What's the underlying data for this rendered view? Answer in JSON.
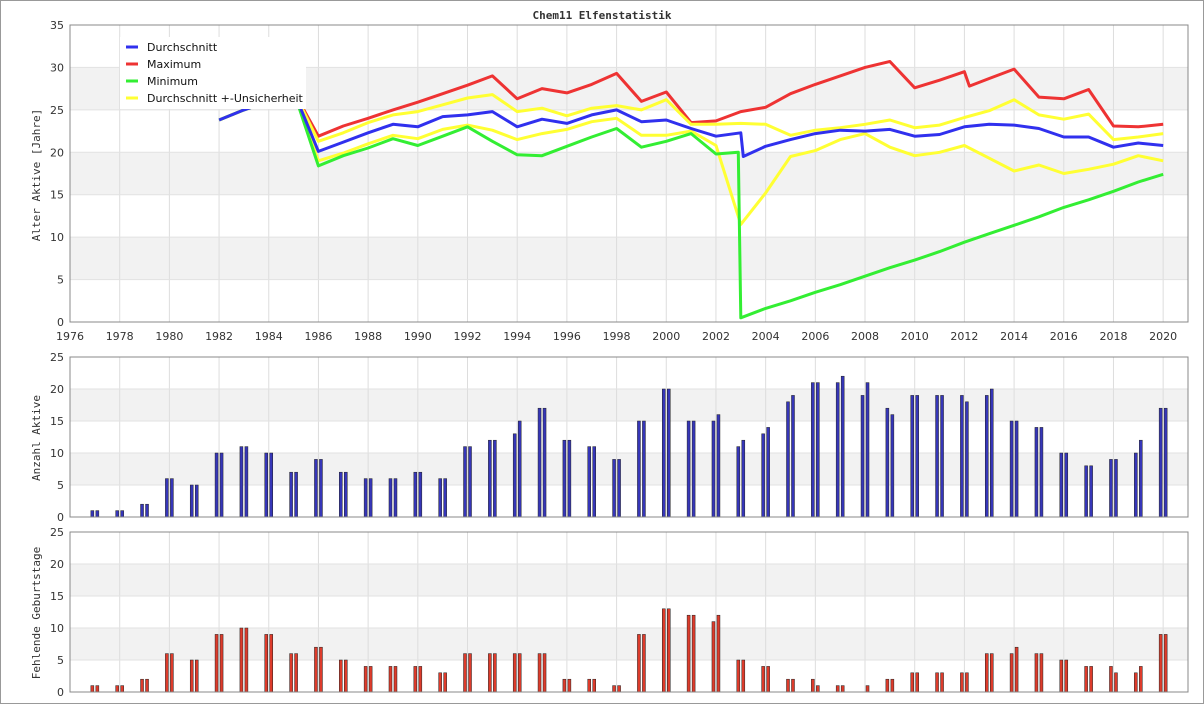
{
  "title": "Chem11 Elfenstatistik",
  "colors": {
    "avg": "#3030ee",
    "max": "#ee3333",
    "min": "#33ee33",
    "unc": "#ffff33",
    "bar_active": "#3636b8",
    "bar_missing": "#dd3b2b"
  },
  "chart_data": [
    {
      "type": "line",
      "ylabel": "Alter Aktive [Jahre]",
      "xlim": [
        1976,
        2021
      ],
      "ylim": [
        0,
        35
      ],
      "xticks": [
        "1976",
        "1978",
        "1980",
        "1982",
        "1984",
        "1986",
        "1988",
        "1990",
        "1992",
        "1994",
        "1996",
        "1998",
        "2000",
        "2002",
        "2004",
        "2006",
        "2008",
        "2010",
        "2012",
        "2014",
        "2016",
        "2018",
        "2020"
      ],
      "yticks": [
        "0",
        "5",
        "10",
        "15",
        "20",
        "25",
        "30",
        "35"
      ],
      "legend_position": "top-left",
      "series": [
        {
          "name": "Maximum",
          "color_key": "max",
          "points": [
            [
              1982,
              23.8
            ],
            [
              1983,
              25.0
            ],
            [
              1984,
              26.0
            ],
            [
              1985,
              27.2
            ],
            [
              1986,
              21.9
            ],
            [
              1987,
              23.1
            ],
            [
              1988,
              24.0
            ],
            [
              1989,
              25.0
            ],
            [
              1990,
              25.9
            ],
            [
              1991,
              26.9
            ],
            [
              1992,
              27.9
            ],
            [
              1993,
              29.0
            ],
            [
              1994,
              26.3
            ],
            [
              1995,
              27.5
            ],
            [
              1996,
              27.0
            ],
            [
              1997,
              28.0
            ],
            [
              1998,
              29.3
            ],
            [
              1999,
              26.0
            ],
            [
              2000,
              27.1
            ],
            [
              2001,
              23.5
            ],
            [
              2002,
              23.7
            ],
            [
              2003,
              24.8
            ],
            [
              2004,
              25.3
            ],
            [
              2005,
              26.9
            ],
            [
              2006,
              28.0
            ],
            [
              2007,
              29.0
            ],
            [
              2008,
              30.0
            ],
            [
              2009,
              30.7
            ],
            [
              2010,
              27.6
            ],
            [
              2011,
              28.5
            ],
            [
              2012,
              29.5
            ],
            [
              2012.2,
              27.8
            ],
            [
              2013,
              28.7
            ],
            [
              2014,
              29.8
            ],
            [
              2015,
              26.5
            ],
            [
              2016,
              26.3
            ],
            [
              2017,
              27.4
            ],
            [
              2018,
              23.1
            ],
            [
              2019,
              23.0
            ],
            [
              2020,
              23.3
            ]
          ]
        },
        {
          "name": "Durchschnitt +-Unsicherheit",
          "color_key": "unc",
          "points": [
            [
              1982,
              23.8
            ],
            [
              1983,
              25.0
            ],
            [
              1984,
              26.0
            ],
            [
              1985,
              27.2
            ],
            [
              1986,
              21.3
            ],
            [
              1987,
              22.3
            ],
            [
              1988,
              23.5
            ],
            [
              1989,
              24.4
            ],
            [
              1990,
              24.8
            ],
            [
              1991,
              25.6
            ],
            [
              1992,
              26.4
            ],
            [
              1993,
              26.8
            ],
            [
              1994,
              24.8
            ],
            [
              1995,
              25.2
            ],
            [
              1996,
              24.3
            ],
            [
              1997,
              25.2
            ],
            [
              1998,
              25.5
            ],
            [
              1999,
              25.0
            ],
            [
              2000,
              26.2
            ],
            [
              2001,
              23.3
            ],
            [
              2002,
              23.3
            ],
            [
              2003,
              23.4
            ],
            [
              2004,
              23.3
            ],
            [
              2005,
              22.0
            ],
            [
              2006,
              22.6
            ],
            [
              2007,
              22.9
            ],
            [
              2008,
              23.3
            ],
            [
              2009,
              23.8
            ],
            [
              2010,
              22.9
            ],
            [
              2011,
              23.2
            ],
            [
              2012,
              24.1
            ],
            [
              2013,
              24.9
            ],
            [
              2014,
              26.2
            ],
            [
              2015,
              24.4
            ],
            [
              2016,
              23.9
            ],
            [
              2017,
              24.5
            ],
            [
              2018,
              21.5
            ],
            [
              2019,
              21.8
            ],
            [
              2020,
              22.2
            ]
          ]
        },
        {
          "name": "Durchschnitt +-Unsicherheit",
          "color_key": "unc",
          "legend": false,
          "points": [
            [
              1982,
              23.8
            ],
            [
              1983,
              25.0
            ],
            [
              1984,
              26.0
            ],
            [
              1985,
              27.2
            ],
            [
              1986,
              19.0
            ],
            [
              1987,
              19.9
            ],
            [
              1988,
              21.0
            ],
            [
              1989,
              22.0
            ],
            [
              1990,
              21.6
            ],
            [
              1991,
              22.7
            ],
            [
              1992,
              23.2
            ],
            [
              1993,
              22.6
            ],
            [
              1994,
              21.5
            ],
            [
              1995,
              22.2
            ],
            [
              1996,
              22.7
            ],
            [
              1997,
              23.6
            ],
            [
              1998,
              24.0
            ],
            [
              1999,
              22.0
            ],
            [
              2000,
              22.0
            ],
            [
              2001,
              22.5
            ],
            [
              2002,
              20.8
            ],
            [
              2003,
              11.5
            ],
            [
              2004,
              15.2
            ],
            [
              2005,
              19.5
            ],
            [
              2006,
              20.2
            ],
            [
              2007,
              21.5
            ],
            [
              2008,
              22.2
            ],
            [
              2009,
              20.6
            ],
            [
              2010,
              19.6
            ],
            [
              2011,
              20.0
            ],
            [
              2012,
              20.8
            ],
            [
              2013,
              19.3
            ],
            [
              2014,
              17.8
            ],
            [
              2015,
              18.5
            ],
            [
              2016,
              17.5
            ],
            [
              2017,
              18.0
            ],
            [
              2018,
              18.6
            ],
            [
              2019,
              19.6
            ],
            [
              2020,
              19.0
            ]
          ]
        },
        {
          "name": "Minimum",
          "color_key": "min",
          "points": [
            [
              1982,
              23.8
            ],
            [
              1983,
              25.0
            ],
            [
              1984,
              26.0
            ],
            [
              1985,
              27.2
            ],
            [
              1986,
              18.4
            ],
            [
              1987,
              19.6
            ],
            [
              1988,
              20.5
            ],
            [
              1989,
              21.6
            ],
            [
              1990,
              20.8
            ],
            [
              1991,
              21.9
            ],
            [
              1992,
              23.0
            ],
            [
              1993,
              21.3
            ],
            [
              1994,
              19.7
            ],
            [
              1995,
              19.6
            ],
            [
              1996,
              20.7
            ],
            [
              1997,
              21.8
            ],
            [
              1998,
              22.8
            ],
            [
              1999,
              20.6
            ],
            [
              2000,
              21.3
            ],
            [
              2001,
              22.2
            ],
            [
              2002,
              19.8
            ],
            [
              2002.9,
              20.0
            ],
            [
              2003,
              0.5
            ],
            [
              2004,
              1.6
            ],
            [
              2005,
              2.5
            ],
            [
              2006,
              3.5
            ],
            [
              2007,
              4.4
            ],
            [
              2008,
              5.4
            ],
            [
              2009,
              6.4
            ],
            [
              2010,
              7.3
            ],
            [
              2011,
              8.3
            ],
            [
              2012,
              9.4
            ],
            [
              2013,
              10.4
            ],
            [
              2014,
              11.4
            ],
            [
              2015,
              12.4
            ],
            [
              2016,
              13.5
            ],
            [
              2017,
              14.4
            ],
            [
              2018,
              15.4
            ],
            [
              2019,
              16.5
            ],
            [
              2020,
              17.4
            ]
          ]
        },
        {
          "name": "Durchschnitt",
          "color_key": "avg",
          "points": [
            [
              1982,
              23.8
            ],
            [
              1983,
              25.0
            ],
            [
              1984,
              26.0
            ],
            [
              1985,
              27.2
            ],
            [
              1986,
              20.1
            ],
            [
              1987,
              21.2
            ],
            [
              1988,
              22.3
            ],
            [
              1989,
              23.3
            ],
            [
              1990,
              23.0
            ],
            [
              1991,
              24.2
            ],
            [
              1992,
              24.4
            ],
            [
              1993,
              24.8
            ],
            [
              1994,
              23.0
            ],
            [
              1995,
              23.9
            ],
            [
              1996,
              23.4
            ],
            [
              1997,
              24.4
            ],
            [
              1998,
              25.0
            ],
            [
              1999,
              23.6
            ],
            [
              2000,
              23.8
            ],
            [
              2001,
              22.8
            ],
            [
              2002,
              21.9
            ],
            [
              2003,
              22.3
            ],
            [
              2003.1,
              19.5
            ],
            [
              2004,
              20.7
            ],
            [
              2005,
              21.5
            ],
            [
              2006,
              22.2
            ],
            [
              2007,
              22.6
            ],
            [
              2008,
              22.5
            ],
            [
              2009,
              22.7
            ],
            [
              2010,
              21.9
            ],
            [
              2011,
              22.1
            ],
            [
              2012,
              23.0
            ],
            [
              2013,
              23.3
            ],
            [
              2014,
              23.2
            ],
            [
              2015,
              22.8
            ],
            [
              2016,
              21.8
            ],
            [
              2017,
              21.8
            ],
            [
              2018,
              20.6
            ],
            [
              2019,
              21.1
            ],
            [
              2020,
              20.8
            ]
          ]
        }
      ]
    },
    {
      "type": "bar",
      "ylabel": "Anzahl Aktive",
      "ylim": [
        0,
        25
      ],
      "yticks": [
        "0",
        "5",
        "10",
        "15",
        "20",
        "25"
      ],
      "color_key": "bar_active",
      "x": [
        1977,
        1978,
        1979,
        1980,
        1981,
        1982,
        1983,
        1984,
        1985,
        1986,
        1987,
        1988,
        1989,
        1990,
        1991,
        1992,
        1993,
        1994,
        1995,
        1996,
        1997,
        1998,
        1999,
        2000,
        2001,
        2002,
        2003,
        2004,
        2005,
        2006,
        2007,
        2008,
        2009,
        2010,
        2011,
        2012,
        2013,
        2014,
        2015,
        2016,
        2017,
        2018,
        2019,
        2020
      ],
      "values_a": [
        1,
        1,
        2,
        6,
        5,
        10,
        11,
        10,
        7,
        9,
        7,
        6,
        6,
        7,
        6,
        11,
        12,
        13,
        17,
        12,
        11,
        9,
        15,
        20,
        15,
        15,
        11,
        13,
        18,
        21,
        21,
        19,
        17,
        19,
        19,
        19,
        19,
        15,
        14,
        10,
        8,
        9,
        10,
        17
      ],
      "values_b": [
        1,
        1,
        2,
        6,
        5,
        10,
        11,
        10,
        7,
        9,
        7,
        6,
        6,
        7,
        6,
        11,
        12,
        15,
        17,
        12,
        11,
        9,
        15,
        20,
        15,
        16,
        12,
        14,
        19,
        21,
        22,
        21,
        16,
        19,
        19,
        18,
        20,
        15,
        14,
        10,
        8,
        9,
        12,
        17
      ]
    },
    {
      "type": "bar",
      "ylabel": "Fehlende Geburtstage",
      "ylim": [
        0,
        25
      ],
      "yticks": [
        "0",
        "5",
        "10",
        "15",
        "20",
        "25"
      ],
      "color_key": "bar_missing",
      "x": [
        1977,
        1978,
        1979,
        1980,
        1981,
        1982,
        1983,
        1984,
        1985,
        1986,
        1987,
        1988,
        1989,
        1990,
        1991,
        1992,
        1993,
        1994,
        1995,
        1996,
        1997,
        1998,
        1999,
        2000,
        2001,
        2002,
        2003,
        2004,
        2005,
        2006,
        2007,
        2008,
        2009,
        2010,
        2011,
        2012,
        2013,
        2014,
        2015,
        2016,
        2017,
        2018,
        2019,
        2020
      ],
      "values_a": [
        1,
        1,
        2,
        6,
        5,
        9,
        10,
        9,
        6,
        7,
        5,
        4,
        4,
        4,
        3,
        6,
        6,
        6,
        6,
        2,
        2,
        1,
        9,
        13,
        12,
        11,
        5,
        4,
        2,
        2,
        1,
        0,
        2,
        3,
        3,
        3,
        6,
        6,
        6,
        5,
        4,
        4,
        3,
        9
      ],
      "values_b": [
        1,
        1,
        2,
        6,
        5,
        9,
        10,
        9,
        6,
        7,
        5,
        4,
        4,
        4,
        3,
        6,
        6,
        6,
        6,
        2,
        2,
        1,
        9,
        13,
        12,
        12,
        5,
        4,
        2,
        1,
        1,
        1,
        2,
        3,
        3,
        3,
        6,
        7,
        6,
        5,
        4,
        3,
        4,
        9
      ]
    }
  ]
}
